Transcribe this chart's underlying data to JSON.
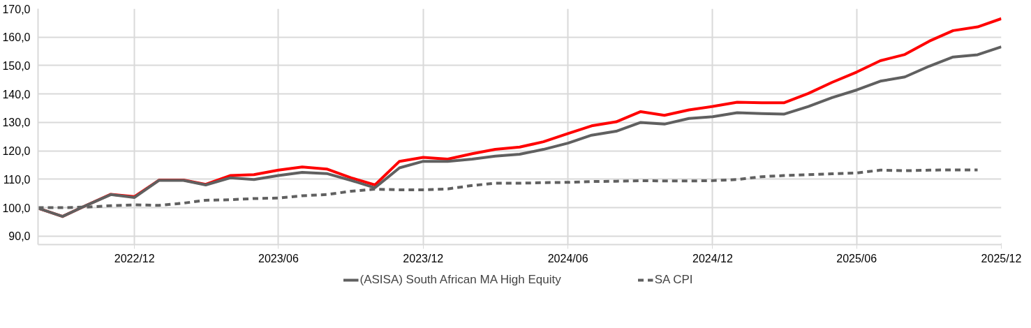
{
  "chart_data": {
    "type": "line",
    "x": [
      "2022-08",
      "2022-09",
      "2022-10",
      "2022-11",
      "2022-12",
      "2023-01",
      "2023-02",
      "2023-03",
      "2023-04",
      "2023-05",
      "2023-06",
      "2023-07",
      "2023-08",
      "2023-09",
      "2023-10",
      "2023-11",
      "2023-12",
      "2024-01",
      "2024-02",
      "2024-03",
      "2024-04",
      "2024-05",
      "2024-06",
      "2024-07",
      "2024-08",
      "2024-09",
      "2024-10",
      "2024-11",
      "2024-12",
      "2025-01",
      "2025-02",
      "2025-03",
      "2025-04",
      "2025-05",
      "2025-06",
      "2025-07",
      "2025-08",
      "2025-09",
      "2025-10",
      "2025-11",
      "2025-12"
    ],
    "series": [
      {
        "color": "#ff0000",
        "line_style": "solid",
        "values": [
          99.8,
          96.9,
          100.8,
          104.7,
          103.9,
          109.7,
          109.7,
          108.2,
          111.3,
          111.6,
          113.2,
          114.3,
          113.6,
          110.5,
          108.0,
          116.3,
          117.7,
          117.1,
          119.0,
          120.5,
          121.3,
          123.2,
          126.1,
          128.8,
          130.2,
          133.8,
          132.5,
          134.4,
          135.6,
          137.1,
          136.9,
          136.9,
          140.2,
          144.1,
          147.7,
          151.7,
          153.9,
          158.6,
          162.3,
          163.6,
          166.5
        ]
      },
      {
        "name": "(ASISA) South African MA High Equity",
        "color": "#606060",
        "line_style": "solid",
        "values": [
          99.8,
          96.9,
          100.8,
          104.6,
          103.6,
          109.6,
          109.6,
          108.0,
          110.5,
          109.9,
          111.3,
          112.4,
          112.0,
          109.6,
          107.0,
          114.0,
          116.3,
          116.3,
          117.1,
          118.1,
          118.8,
          120.5,
          122.7,
          125.5,
          126.9,
          130.0,
          129.4,
          131.4,
          132.0,
          133.4,
          133.1,
          132.9,
          135.6,
          138.7,
          141.4,
          144.5,
          146.0,
          149.8,
          153.0,
          153.8,
          156.6
        ]
      },
      {
        "name": "SA CPI",
        "color": "#606060",
        "line_style": "dashed",
        "values": [
          100.0,
          100.0,
          100.2,
          100.7,
          101.0,
          100.8,
          101.6,
          102.6,
          102.8,
          103.2,
          103.4,
          104.2,
          104.6,
          105.8,
          106.5,
          106.3,
          106.3,
          106.6,
          107.8,
          108.6,
          108.6,
          108.8,
          108.9,
          109.2,
          109.3,
          109.5,
          109.4,
          109.4,
          109.5,
          109.9,
          110.9,
          111.3,
          111.6,
          111.9,
          112.2,
          113.2,
          113.0,
          113.2,
          113.3,
          113.3,
          null
        ]
      }
    ],
    "xlim": [
      "2022-08",
      "2025-12"
    ],
    "xticks": [
      {
        "value": "2022-12",
        "label": "2022/12"
      },
      {
        "value": "2023-06",
        "label": "2023/06"
      },
      {
        "value": "2023-12",
        "label": "2023/12"
      },
      {
        "value": "2024-06",
        "label": "2024/06"
      },
      {
        "value": "2024-12",
        "label": "2024/12"
      },
      {
        "value": "2025-06",
        "label": "2025/06"
      },
      {
        "value": "2025-12",
        "label": "2025/12"
      }
    ],
    "ylim": [
      87,
      170
    ],
    "yticks": [
      {
        "value": 90,
        "label": "90,0"
      },
      {
        "value": 100,
        "label": "100,0"
      },
      {
        "value": 110,
        "label": "110,0"
      },
      {
        "value": 120,
        "label": "120,0"
      },
      {
        "value": 130,
        "label": "130,0"
      },
      {
        "value": 140,
        "label": "140,0"
      },
      {
        "value": 150,
        "label": "150,0"
      },
      {
        "value": 160,
        "label": "160,0"
      },
      {
        "value": 170,
        "label": "170,0"
      }
    ],
    "grid": true,
    "legend": "bottom",
    "marker": "none"
  }
}
